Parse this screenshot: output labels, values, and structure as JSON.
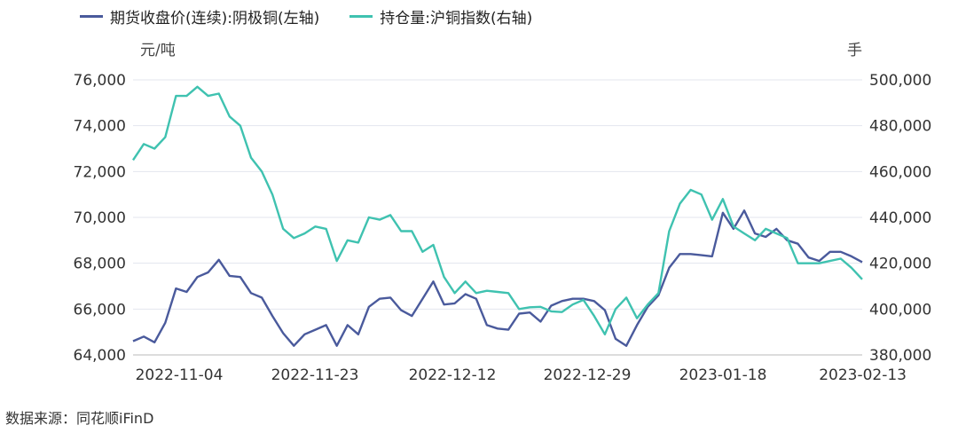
{
  "source_note": "数据来源：同花顺iFinD",
  "chart_data": {
    "type": "line",
    "left_unit": "元/吨",
    "right_unit": "手",
    "x_ticks": [
      "2022-11-04",
      "2022-11-23",
      "2022-12-12",
      "2022-12-29",
      "2023-01-18",
      "2023-02-13"
    ],
    "y_left": {
      "min": 64000,
      "max": 76000,
      "ticks": [
        "64,000",
        "66,000",
        "68,000",
        "70,000",
        "72,000",
        "74,000",
        "76,000"
      ]
    },
    "y_right": {
      "min": 380000,
      "max": 500000,
      "ticks": [
        "380,000",
        "400,000",
        "420,000",
        "440,000",
        "460,000",
        "480,000",
        "500,000"
      ]
    },
    "grid": true,
    "legend_position": "top-left",
    "series": [
      {
        "name": "期货收盘价(连续):阴极铜(左轴)",
        "axis": "left",
        "color": "#4a5a9c",
        "values": [
          64600,
          64800,
          64550,
          65400,
          66900,
          66750,
          67400,
          67600,
          68150,
          67450,
          67400,
          66700,
          66500,
          65700,
          64950,
          64400,
          64900,
          65100,
          65300,
          64400,
          65300,
          64900,
          66100,
          66450,
          66500,
          65950,
          65700,
          66450,
          67200,
          66200,
          66250,
          66650,
          66450,
          65300,
          65150,
          65100,
          65800,
          65850,
          65450,
          66150,
          66350,
          66450,
          66450,
          66350,
          65950,
          64700,
          64400,
          65300,
          66100,
          66600,
          67800,
          68400,
          68400,
          68350,
          68300,
          70200,
          69500,
          70300,
          69300,
          69150,
          69500,
          69000,
          68850,
          68250,
          68100,
          68500,
          68500,
          68300,
          68050
        ]
      },
      {
        "name": "持仓量:沪铜指数(右轴)",
        "axis": "right",
        "color": "#3fc2b0",
        "values": [
          465000,
          472000,
          470000,
          475000,
          493000,
          493000,
          497000,
          493000,
          494000,
          484000,
          480000,
          466000,
          460000,
          450000,
          435000,
          431000,
          433000,
          436000,
          435000,
          421000,
          430000,
          429000,
          440000,
          439000,
          441000,
          434000,
          434000,
          425000,
          428000,
          414000,
          407000,
          412000,
          407000,
          408000,
          407500,
          407000,
          400000,
          400800,
          401000,
          399000,
          398700,
          402000,
          404000,
          397000,
          389000,
          400000,
          405000,
          396000,
          402000,
          407000,
          434000,
          446000,
          452000,
          450000,
          439000,
          448000,
          436000,
          433000,
          430000,
          435000,
          433000,
          431000,
          420000,
          420000,
          420000,
          421000,
          422000,
          418000,
          413000
        ]
      }
    ]
  }
}
